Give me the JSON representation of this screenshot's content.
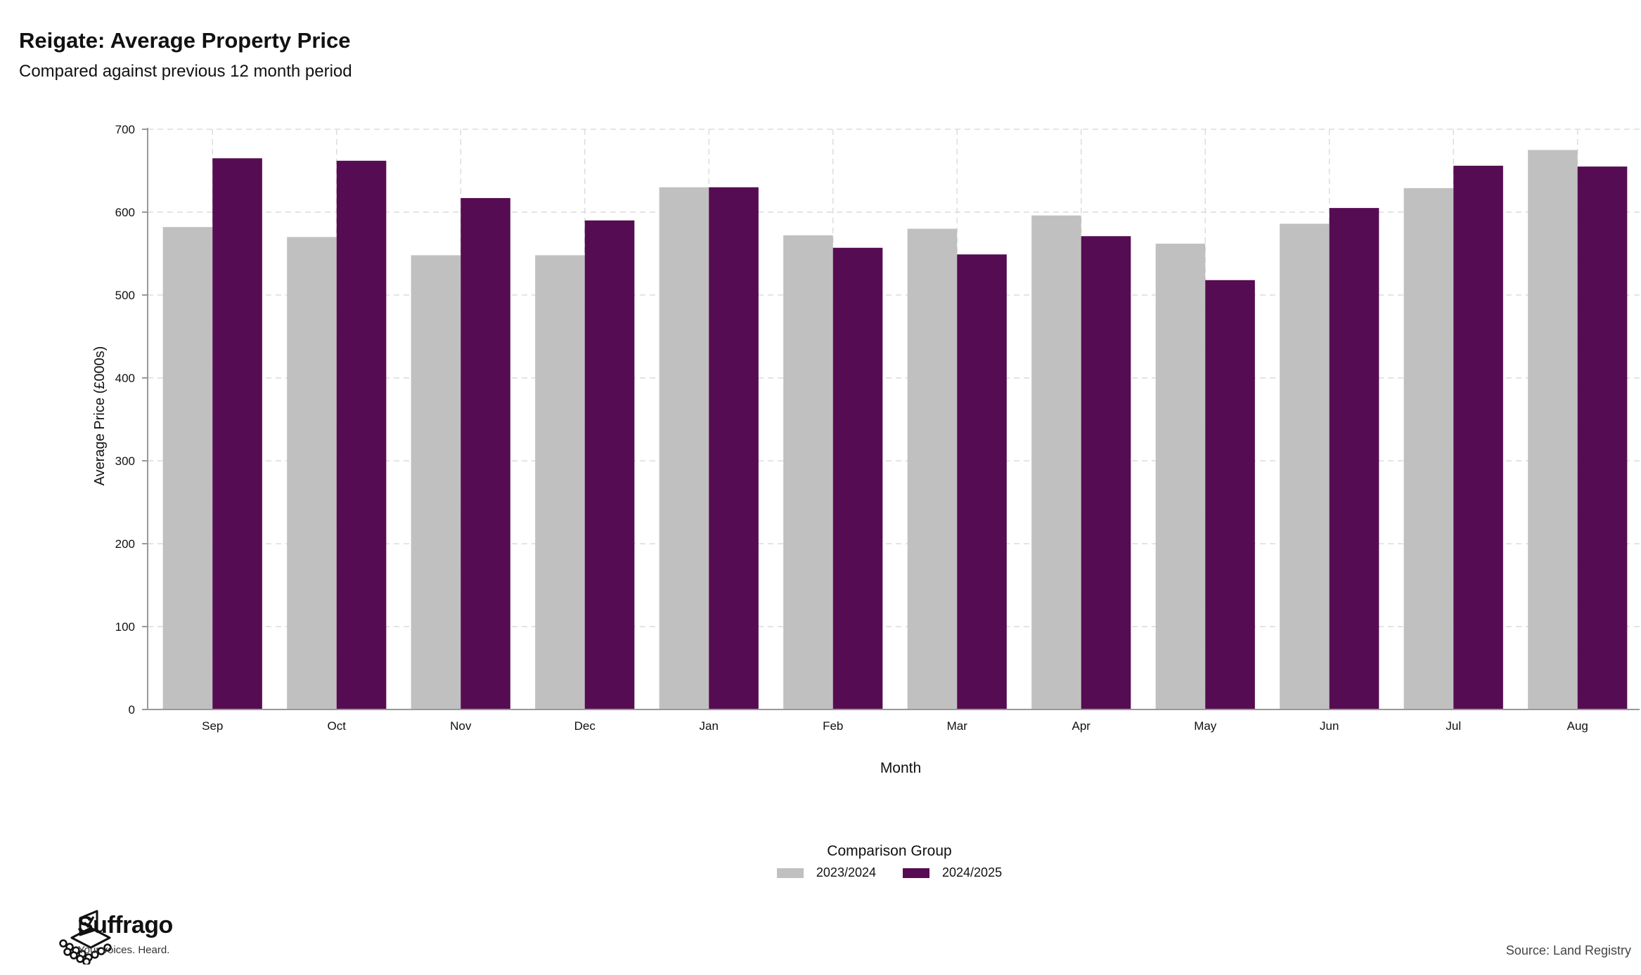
{
  "title": "Reigate: Average Property Price",
  "subtitle": "Compared against previous 12 month period",
  "source": "Source: Land Registry",
  "logo": {
    "name": "Suffrago",
    "tagline": "Your voices. Heard."
  },
  "legend": {
    "title": "Comparison Group",
    "position": "bottom-center"
  },
  "colors": {
    "series_2023_2024": "#c0c0c0",
    "series_2024_2025": "#560c52",
    "grid": "#dcdcdc",
    "axis": "#999999"
  },
  "chart_data": {
    "type": "bar",
    "xlabel": "Month",
    "ylabel": "Average Price (£000s)",
    "ylim": [
      0,
      700
    ],
    "yticks": [
      0,
      100,
      200,
      300,
      400,
      500,
      600,
      700
    ],
    "grid": true,
    "categories": [
      "Sep",
      "Oct",
      "Nov",
      "Dec",
      "Jan",
      "Feb",
      "Mar",
      "Apr",
      "May",
      "Jun",
      "Jul",
      "Aug"
    ],
    "series": [
      {
        "name": "2023/2024",
        "values": [
          582,
          570,
          548,
          548,
          630,
          572,
          580,
          596,
          562,
          586,
          629,
          675
        ]
      },
      {
        "name": "2024/2025",
        "values": [
          665,
          662,
          617,
          590,
          630,
          557,
          549,
          571,
          518,
          605,
          656,
          655
        ]
      }
    ]
  }
}
